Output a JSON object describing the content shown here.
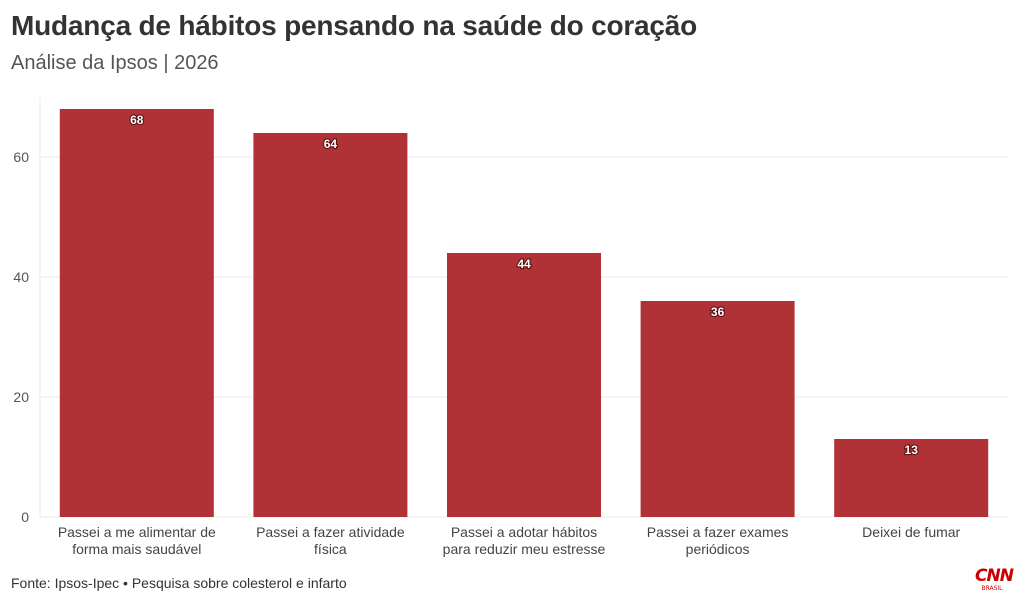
{
  "header": {
    "title": "Mudança de hábitos pensando na saúde do coração",
    "subtitle": "Análise da Ipsos | 2026"
  },
  "footer": {
    "source": "Fonte: Ipsos-Ipec • Pesquisa sobre colesterol e infarto",
    "logo_text": "CNN",
    "logo_subtext": "BRASIL"
  },
  "colors": {
    "bar": "#b03236",
    "grid": "#ebebeb",
    "axis_text": "#555555"
  },
  "chart_data": {
    "type": "bar",
    "title": "Mudança de hábitos pensando na saúde do coração",
    "subtitle": "Análise da Ipsos | 2026",
    "xlabel": "",
    "ylabel": "",
    "categories": [
      [
        "Passei a me alimentar de",
        "forma mais saudável"
      ],
      [
        "Passei a fazer atividade",
        "física"
      ],
      [
        "Passei a adotar hábitos",
        "para reduzir meu estresse"
      ],
      [
        "Passei a fazer exames",
        "periódicos"
      ],
      [
        "Deixei de fumar"
      ]
    ],
    "values": [
      68,
      64,
      44,
      36,
      13
    ],
    "ylim": [
      0,
      70
    ],
    "yticks": [
      0,
      20,
      40,
      60
    ],
    "grid": true,
    "data_labels": true,
    "legend": "none"
  }
}
